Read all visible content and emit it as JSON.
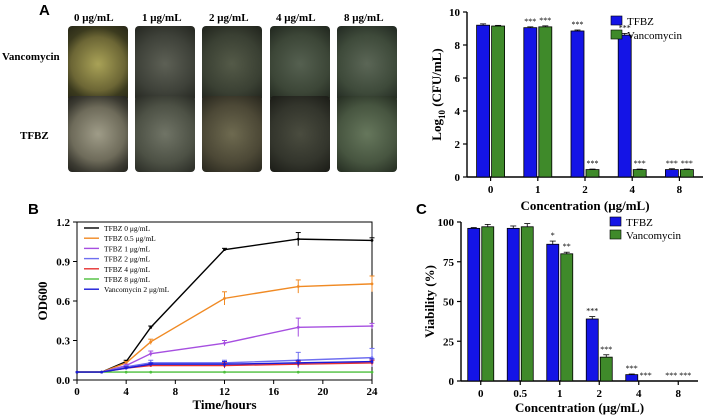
{
  "panels": {
    "a": "A",
    "b": "B",
    "c": "C"
  },
  "plates": {
    "concentrations": [
      "0 μg/mL",
      "1 μg/mL",
      "2 μg/mL",
      "4 μg/mL",
      "8 μg/mL"
    ],
    "rows": [
      "Vancomycin",
      "TFBZ"
    ]
  },
  "colors": {
    "tfbz": "#1414e6",
    "vanco": "#3f8a2a"
  },
  "chart_data": [
    {
      "id": "A",
      "type": "bar",
      "categories": [
        "0",
        "1",
        "2",
        "4",
        "8"
      ],
      "series": [
        {
          "name": "TFBZ",
          "values": [
            9.2,
            9.05,
            8.85,
            8.6,
            0.45
          ],
          "errors": [
            0.08,
            0.05,
            0.06,
            0.1,
            0.05
          ]
        },
        {
          "name": "Vancomycin",
          "values": [
            9.15,
            9.1,
            0.45,
            0.45,
            0.45
          ],
          "errors": [
            0.04,
            0.06,
            0.03,
            0.03,
            0.03
          ]
        }
      ],
      "significance": {
        "TFBZ": [
          "",
          "***",
          "***",
          "***",
          "***"
        ],
        "Vancomycin": [
          "",
          "***",
          "***",
          "***",
          "***"
        ]
      },
      "xlabel": "Concentration (μg/mL)",
      "ylabel_main": "Log",
      "ylabel_sub": "10",
      "ylabel_tail": " (CFU/mL)",
      "ylim": [
        0,
        10
      ],
      "yticks": [
        "0",
        "2",
        "4",
        "6",
        "8",
        "10"
      ],
      "legend": [
        "TFBZ",
        "Vancomycin"
      ]
    },
    {
      "id": "B",
      "type": "line",
      "x": [
        0,
        2,
        4,
        6,
        12,
        18,
        24
      ],
      "xticks": [
        "0",
        "4",
        "8",
        "12",
        "16",
        "20",
        "24"
      ],
      "yticks": [
        "0.0",
        "0.3",
        "0.6",
        "0.9",
        "1.2"
      ],
      "xlim": [
        0,
        24
      ],
      "ylim": [
        0,
        1.2
      ],
      "xlabel": "Time/hours",
      "ylabel": "OD600",
      "series": [
        {
          "name": "TFBZ 0 μg/mL",
          "color": "#000000",
          "values": [
            0.06,
            0.06,
            0.14,
            0.4,
            0.99,
            1.07,
            1.06
          ],
          "errors": [
            0,
            0,
            0.01,
            0.01,
            0.01,
            0.05,
            0.02
          ]
        },
        {
          "name": "TFBZ 0.5 μg/mL",
          "color": "#f08a24",
          "values": [
            0.06,
            0.06,
            0.13,
            0.29,
            0.62,
            0.71,
            0.73
          ],
          "errors": [
            0,
            0,
            0.01,
            0.02,
            0.05,
            0.05,
            0.06
          ]
        },
        {
          "name": "TFBZ 1 μg/mL",
          "color": "#a64fe0",
          "values": [
            0.06,
            0.06,
            0.11,
            0.2,
            0.28,
            0.4,
            0.41
          ],
          "errors": [
            0,
            0,
            0.01,
            0.02,
            0.02,
            0.07,
            0.02
          ]
        },
        {
          "name": "TFBZ 2 μg/mL",
          "color": "#6f6ff0",
          "values": [
            0.06,
            0.06,
            0.1,
            0.13,
            0.13,
            0.15,
            0.17
          ],
          "errors": [
            0,
            0,
            0.01,
            0.02,
            0.02,
            0.06,
            0.07
          ]
        },
        {
          "name": "TFBZ 4 μg/mL",
          "color": "#e63232",
          "values": [
            0.06,
            0.06,
            0.09,
            0.11,
            0.11,
            0.12,
            0.13
          ],
          "errors": [
            0,
            0,
            0.01,
            0.01,
            0.02,
            0.02,
            0.02
          ]
        },
        {
          "name": "TFBZ 8 μg/mL",
          "color": "#4cbf3c",
          "values": [
            0.06,
            0.06,
            0.06,
            0.06,
            0.06,
            0.06,
            0.06
          ],
          "errors": [
            0,
            0,
            0,
            0,
            0,
            0,
            0
          ]
        },
        {
          "name": "Vancomycin 2 μg/mL",
          "color": "#1a1ad9",
          "values": [
            0.06,
            0.06,
            0.09,
            0.12,
            0.12,
            0.13,
            0.14
          ],
          "errors": [
            0,
            0,
            0.01,
            0.01,
            0.02,
            0.02,
            0.02
          ]
        }
      ],
      "legend_rows": [
        {
          "label": "TFBZ 0 μg/mL",
          "color": "#000000"
        },
        {
          "label": "TFBZ 0.5 μg/mL",
          "color": "#f08a24"
        },
        {
          "label": "TFBZ 1 μg/mL",
          "color": "#a64fe0"
        },
        {
          "label": "TFBZ 2 μg/mL",
          "color": "#6f6ff0"
        },
        {
          "label": "TFBZ 4 μg/mL",
          "color": "#e63232"
        },
        {
          "label": "TFBZ 8 μg/mL",
          "color": "#4cbf3c"
        },
        {
          "label": "Vancomycin 2 μg/mL",
          "color": "#1a1ad9"
        }
      ]
    },
    {
      "id": "C",
      "type": "bar",
      "categories": [
        "0",
        "0.5",
        "1",
        "2",
        "4",
        "8"
      ],
      "series": [
        {
          "name": "TFBZ",
          "values": [
            96,
            96,
            86,
            39,
            4,
            0
          ],
          "errors": [
            0.5,
            1.5,
            2,
            1.5,
            0.4,
            0
          ]
        },
        {
          "name": "Vancomycin",
          "values": [
            97,
            97,
            80,
            15,
            0,
            0
          ],
          "errors": [
            1.5,
            2,
            1,
            1.5,
            0,
            0
          ]
        }
      ],
      "significance": {
        "TFBZ": [
          "",
          "",
          "*",
          "***",
          "***",
          "***"
        ],
        "Vancomycin": [
          "",
          "",
          "**",
          "***",
          "***",
          "***"
        ]
      },
      "xlabel": "Concentration (μg/mL)",
      "ylabel": "Viability (%)",
      "ylim": [
        0,
        100
      ],
      "yticks": [
        "0",
        "25",
        "50",
        "75",
        "100"
      ],
      "legend": [
        "TFBZ",
        "Vancomycin"
      ]
    }
  ]
}
